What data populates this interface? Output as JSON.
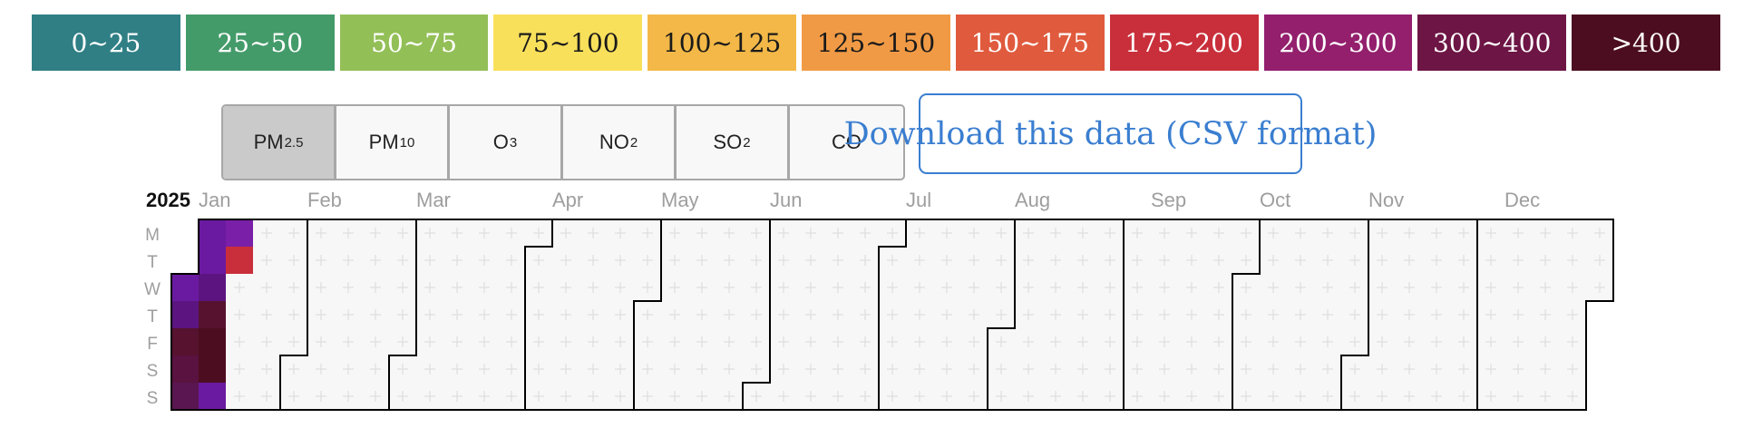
{
  "legend": [
    {
      "label": "0~25",
      "color": "#2f7f85"
    },
    {
      "label": "25~50",
      "color": "#449b6a"
    },
    {
      "label": "50~75",
      "color": "#93bf57"
    },
    {
      "label": "75~100",
      "color": "#f9e05b"
    },
    {
      "label": "100~125",
      "color": "#f3b847"
    },
    {
      "label": "125~150",
      "color": "#f19a45"
    },
    {
      "label": "150~175",
      "color": "#e05a3d"
    },
    {
      "label": "175~200",
      "color": "#c92f3b"
    },
    {
      "label": "200~300",
      "color": "#931f6d"
    },
    {
      "label": "300~400",
      "color": "#6d1544"
    },
    {
      "label": ">400",
      "color": "#4d0d20"
    }
  ],
  "pollutants": [
    {
      "main": "PM",
      "sub": "2.5",
      "active": true
    },
    {
      "main": "PM",
      "sub": "10",
      "active": false
    },
    {
      "main": "O",
      "sub": "3",
      "active": false
    },
    {
      "main": "NO",
      "sub": "2",
      "active": false
    },
    {
      "main": "SO",
      "sub": "2",
      "active": false
    },
    {
      "main": "CO",
      "sub": "",
      "active": false
    }
  ],
  "download_label": "Download this data (CSV format)",
  "calendar": {
    "year": "2025",
    "months": [
      "Jan",
      "Feb",
      "Mar",
      "Apr",
      "May",
      "Jun",
      "Jul",
      "Aug",
      "Sep",
      "Oct",
      "Nov",
      "Dec"
    ],
    "weekdays": [
      "M",
      "T",
      "W",
      "T",
      "F",
      "S",
      "S"
    ],
    "filled_days": [
      {
        "date": "2025-01-01",
        "color": "#6a1aa0"
      },
      {
        "date": "2025-01-02",
        "color": "#5c1580"
      },
      {
        "date": "2025-01-03",
        "color": "#56122e"
      },
      {
        "date": "2025-01-04",
        "color": "#5a1240"
      },
      {
        "date": "2025-01-05",
        "color": "#5a1650"
      },
      {
        "date": "2025-01-06",
        "color": "#6a1aa0"
      },
      {
        "date": "2025-01-07",
        "color": "#6a1aa0"
      },
      {
        "date": "2025-01-08",
        "color": "#5c1580"
      },
      {
        "date": "2025-01-09",
        "color": "#56122e"
      },
      {
        "date": "2025-01-10",
        "color": "#4d0d20"
      },
      {
        "date": "2025-01-11",
        "color": "#4d0d20"
      },
      {
        "date": "2025-01-12",
        "color": "#6a1aa0"
      },
      {
        "date": "2025-01-13",
        "color": "#7a1fa8"
      },
      {
        "date": "2025-01-14",
        "color": "#c92f3b"
      }
    ]
  }
}
